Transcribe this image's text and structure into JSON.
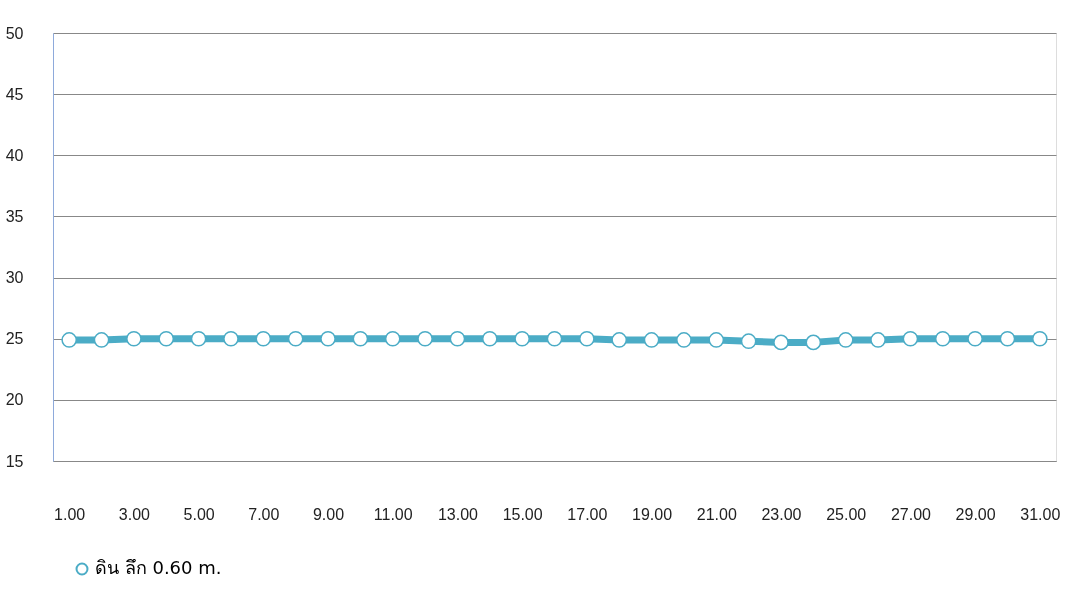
{
  "chart_data": {
    "type": "line",
    "categories": [
      "1.00",
      null,
      "3.00",
      null,
      "5.00",
      null,
      "7.00",
      null,
      "9.00",
      null,
      "11.00",
      null,
      "13.00",
      null,
      "15.00",
      null,
      "17.00",
      null,
      "19.00",
      null,
      "21.00",
      null,
      "23.00",
      null,
      "25.00",
      null,
      "27.00",
      null,
      "29.00",
      null,
      "31.00"
    ],
    "series": [
      {
        "name": "ดิน ลึก 0.60 m.",
        "color": "#4bacc6",
        "values": [
          24.9,
          24.9,
          25.0,
          25.0,
          25.0,
          25.0,
          25.0,
          25.0,
          25.0,
          25.0,
          25.0,
          25.0,
          25.0,
          25.0,
          25.0,
          25.0,
          25.0,
          24.9,
          24.9,
          24.9,
          24.9,
          24.8,
          24.7,
          24.7,
          24.9,
          24.9,
          25.0,
          25.0,
          25.0,
          25.0,
          25.0
        ]
      }
    ],
    "ylim": [
      15,
      50
    ],
    "yticks": [
      15,
      20,
      25,
      30,
      35,
      40,
      45,
      50
    ],
    "grid": "y",
    "legend": "bottom",
    "marker": "circle",
    "line_style": "solid"
  }
}
